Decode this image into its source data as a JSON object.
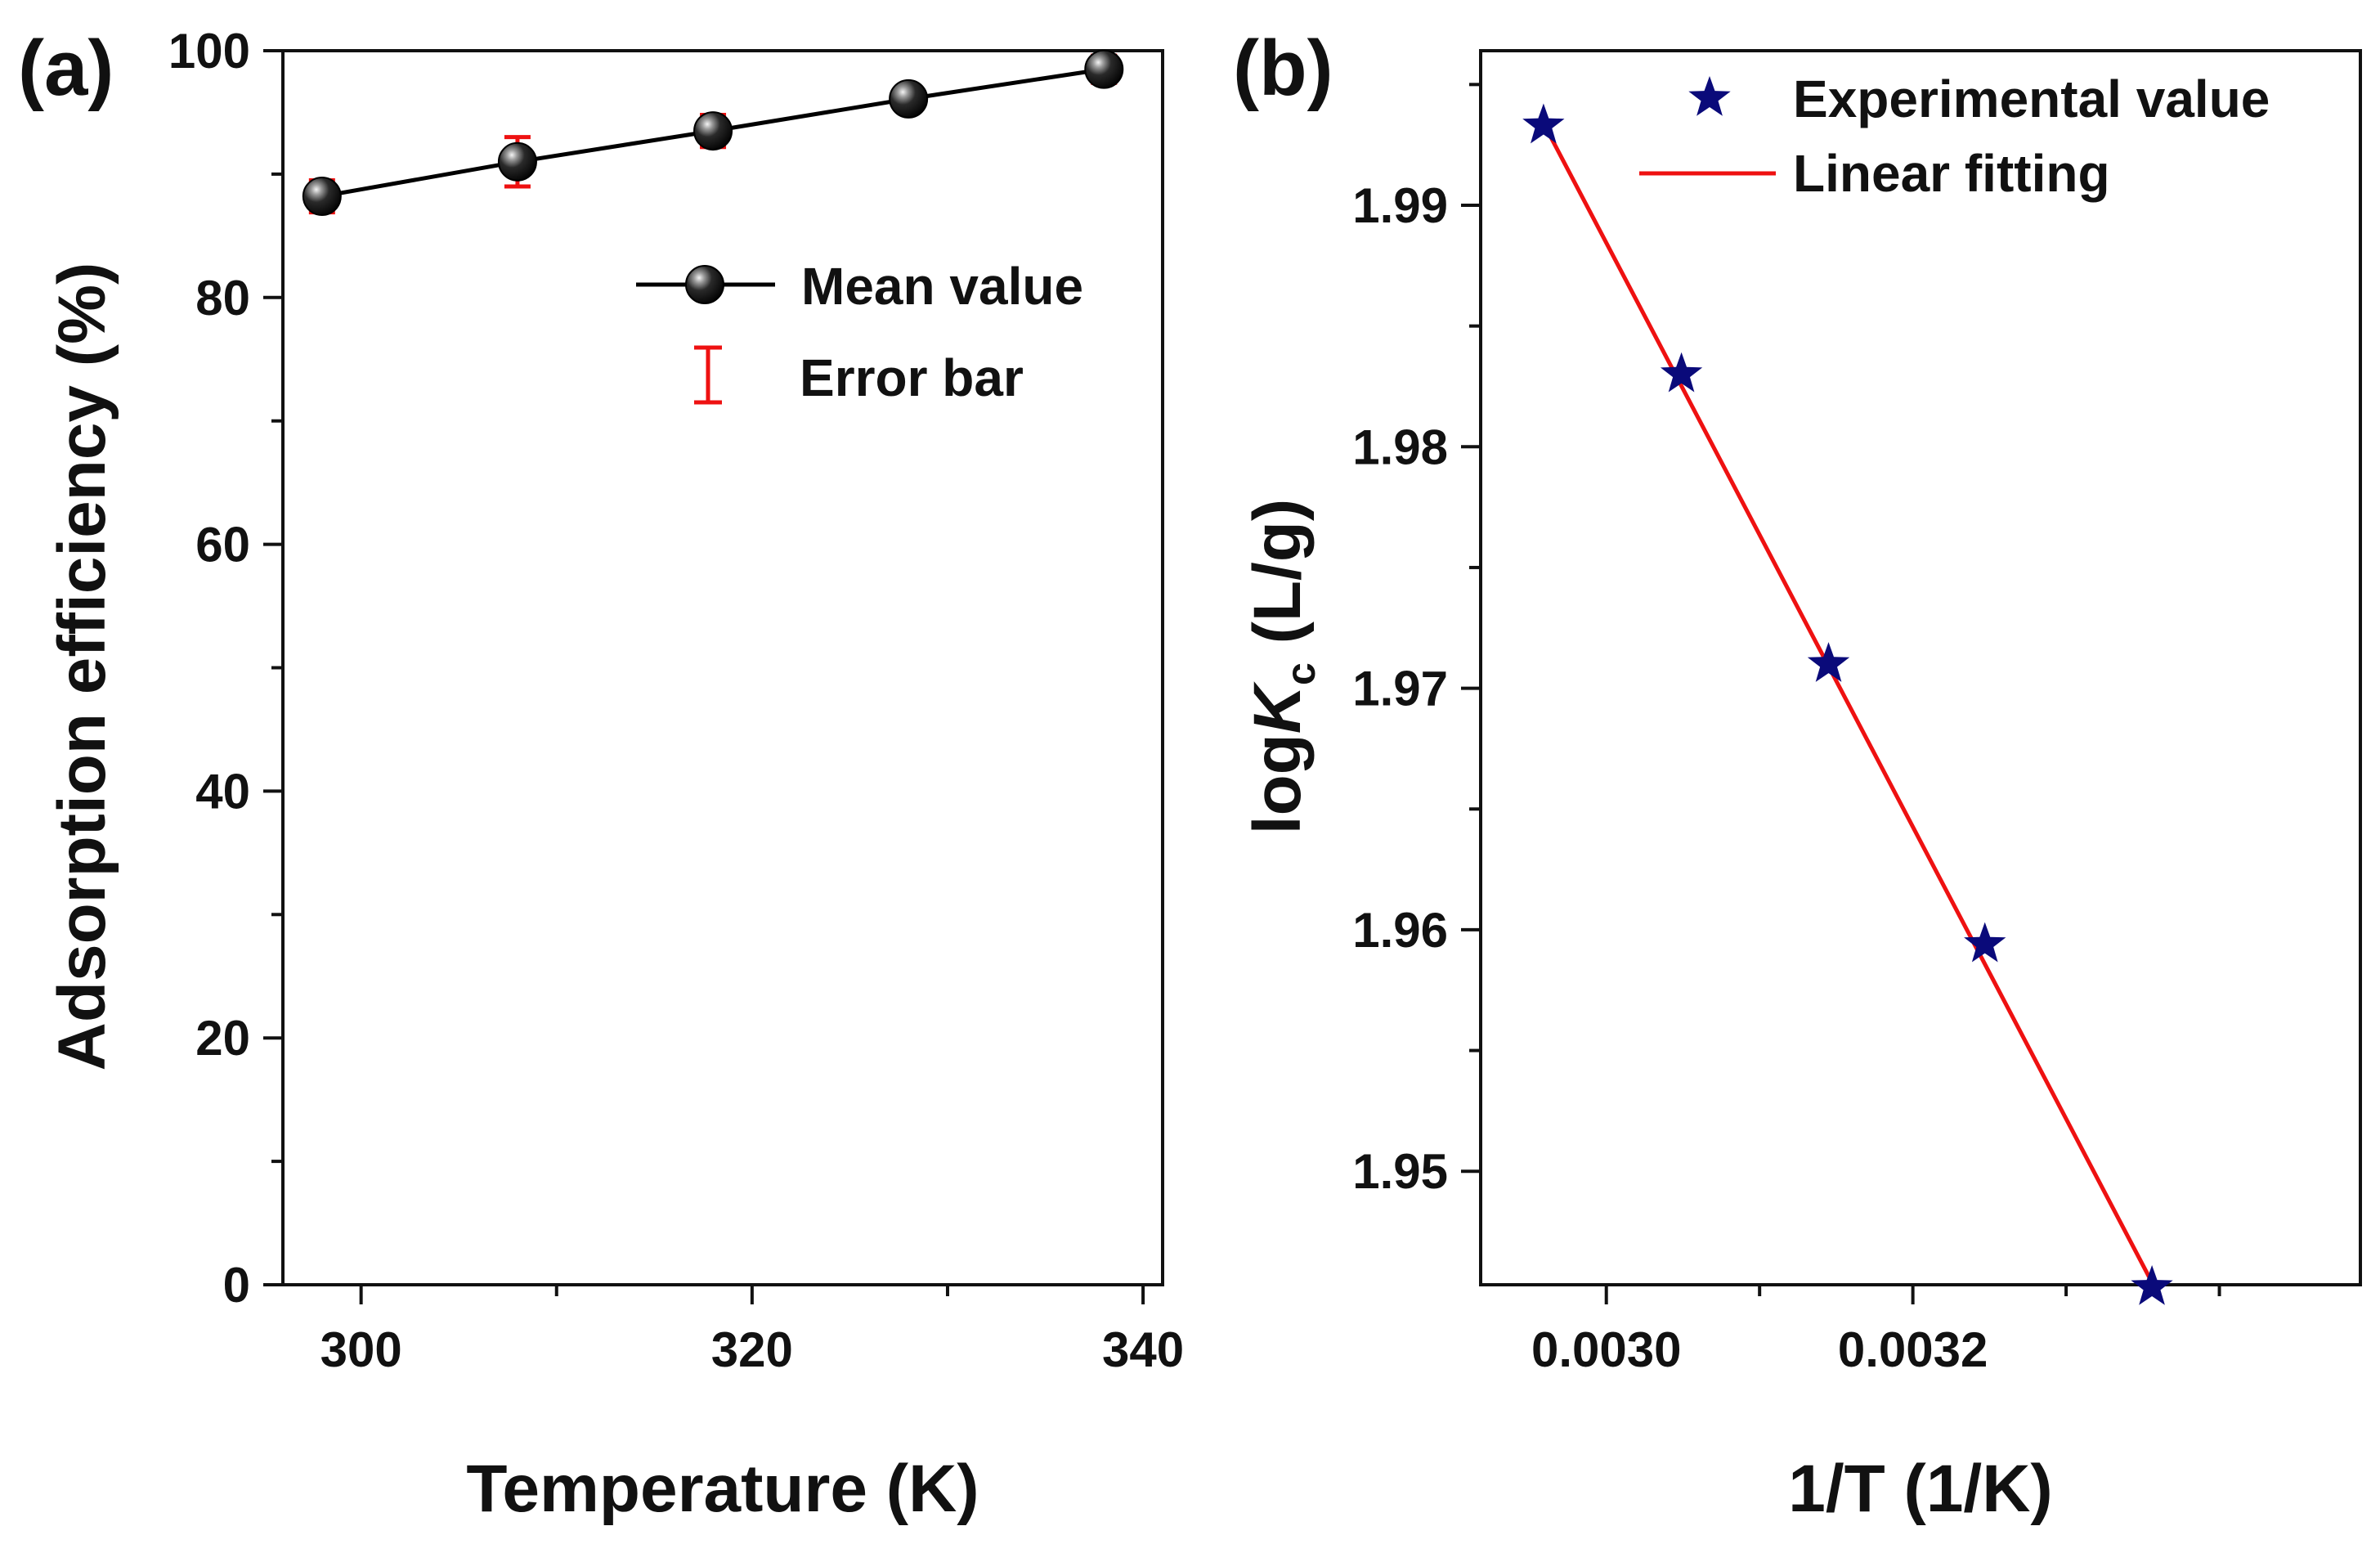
{
  "chart_data": [
    {
      "type": "line",
      "panel_label": "(a)",
      "xlabel": "Temperature (K)",
      "ylabel": "Adsorption efficiency (%)",
      "xlim": [
        296,
        341
      ],
      "ylim": [
        0,
        100
      ],
      "xticks": [
        300,
        320,
        340
      ],
      "yticks": [
        0,
        20,
        40,
        60,
        80,
        100
      ],
      "series": [
        {
          "name": "Mean value",
          "x": [
            298,
            308,
            318,
            328,
            338
          ],
          "values": [
            88.2,
            91.0,
            93.5,
            96.1,
            98.5
          ],
          "errors": [
            1.3,
            2.0,
            1.3,
            1.0,
            1.1
          ],
          "error_name": "Error bar"
        }
      ],
      "legend": [
        "Mean value",
        "Error bar"
      ],
      "legend_position": "top-right"
    },
    {
      "type": "scatter",
      "panel_label": "(b)",
      "xlabel": "1/T (1/K)",
      "ylabel_prefix": "log",
      "ylabel_var": "K",
      "ylabel_sub": "c",
      "ylabel_suffix": " (L/g)",
      "xlim": [
        0.002918,
        0.003492
      ],
      "ylim": [
        1.9453,
        1.9964
      ],
      "xticks": [
        0.003,
        0.0032
      ],
      "xtick_labels": [
        "0.0030",
        "0.0032"
      ],
      "yticks": [
        1.95,
        1.96,
        1.97,
        1.98,
        1.99
      ],
      "ytick_labels": [
        "1.95",
        "1.96",
        "1.97",
        "1.98",
        "1.99"
      ],
      "series": [
        {
          "name": "Experimental value",
          "x": [
            0.003356,
            0.003247,
            0.003145,
            0.003049,
            0.002959
          ],
          "values": [
            1.9452,
            1.9594,
            1.971,
            1.983,
            1.9933
          ]
        },
        {
          "name": "Linear fitting",
          "x": [
            0.002959,
            0.003356
          ],
          "values": [
            1.9934,
            1.9454
          ]
        }
      ],
      "legend": [
        "Experimental value",
        "Linear fitting"
      ],
      "legend_position": "top-right"
    }
  ],
  "colors": {
    "axis": "#111111",
    "line_a": "#000000",
    "marker_a": "#0d0d0d",
    "error": "#ee1111",
    "star": "#0a0a7a",
    "fit": "#ee1111"
  }
}
